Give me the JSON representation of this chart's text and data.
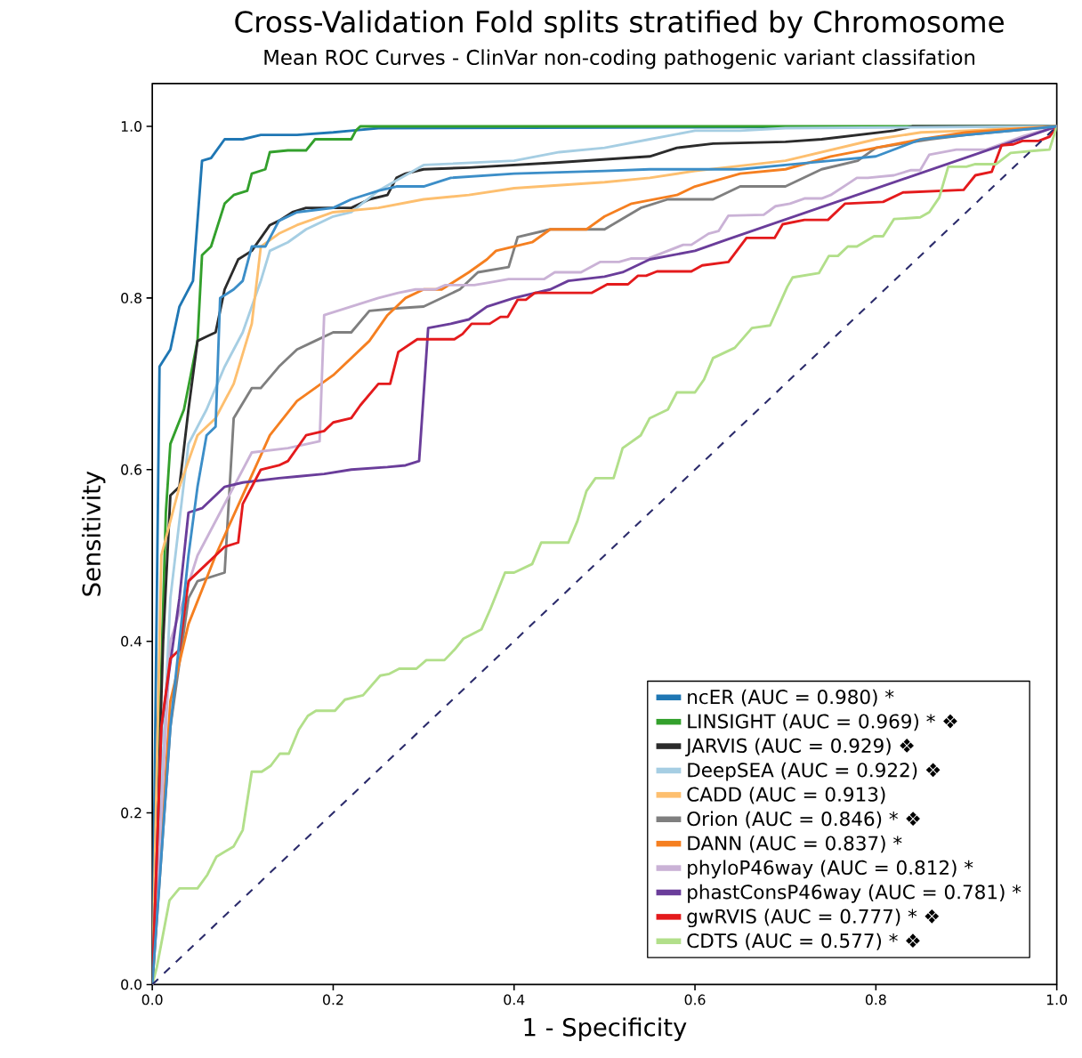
{
  "chart_data": {
    "type": "line",
    "title": "Cross-Validation Fold splits stratified by Chromosome",
    "subtitle": "Mean ROC Curves - ClinVar non-coding pathogenic variant classifation",
    "xlabel": "1 - Specificity",
    "ylabel": "Sensitivity",
    "xlim": [
      0,
      1
    ],
    "ylim": [
      0,
      1.05
    ],
    "xticks": [
      {
        "value": 0,
        "label": "0.0"
      },
      {
        "value": 0.2,
        "label": "0.2"
      },
      {
        "value": 0.4,
        "label": "0.4"
      },
      {
        "value": 0.6,
        "label": "0.6"
      },
      {
        "value": 0.8,
        "label": "0.8"
      },
      {
        "value": 1,
        "label": "1.0"
      }
    ],
    "yticks": [
      {
        "value": 0,
        "label": "0.0"
      },
      {
        "value": 0.2,
        "label": "0.2"
      },
      {
        "value": 0.4,
        "label": "0.4"
      },
      {
        "value": 0.6,
        "label": "0.6"
      },
      {
        "value": 0.8,
        "label": "0.8"
      },
      {
        "value": 1,
        "label": "1.0"
      }
    ],
    "grid": false,
    "legend": "bottom right",
    "marker": "none",
    "series": [
      {
        "name": "ncER (AUC = 0.980) *",
        "color": "#1f77b4",
        "x": [
          0,
          0.008,
          0.02,
          0.03,
          0.045,
          0.055,
          0.065,
          0.08,
          0.1,
          0.12,
          0.16,
          0.2,
          0.22,
          0.25,
          1
        ],
        "values": [
          0,
          0.72,
          0.74,
          0.79,
          0.82,
          0.96,
          0.963,
          0.985,
          0.985,
          0.99,
          0.99,
          0.993,
          0.995,
          0.998,
          1
        ]
      },
      {
        "name": "LINSIGHT (AUC = 0.969) * ❖",
        "color": "#33a02c",
        "x": [
          0,
          0.015,
          0.02,
          0.035,
          0.05,
          0.055,
          0.065,
          0.08,
          0.09,
          0.105,
          0.11,
          0.125,
          0.13,
          0.15,
          0.17,
          0.18,
          0.22,
          0.225,
          0.23,
          1
        ],
        "values": [
          0,
          0.55,
          0.63,
          0.67,
          0.75,
          0.85,
          0.86,
          0.91,
          0.92,
          0.925,
          0.945,
          0.95,
          0.97,
          0.972,
          0.972,
          0.985,
          0.985,
          0.995,
          1,
          1
        ]
      },
      {
        "name": "JARVIS (AUC = 0.929) ❖",
        "color": "#2b2b2b",
        "x": [
          0,
          0.012,
          0.02,
          0.03,
          0.04,
          0.05,
          0.06,
          0.07,
          0.08,
          0.095,
          0.11,
          0.13,
          0.14,
          0.155,
          0.17,
          0.22,
          0.24,
          0.26,
          0.27,
          0.28,
          0.3,
          0.35,
          0.45,
          0.55,
          0.58,
          0.62,
          0.7,
          0.74,
          0.82,
          0.84,
          1
        ],
        "values": [
          0,
          0.4,
          0.57,
          0.58,
          0.67,
          0.75,
          0.755,
          0.76,
          0.81,
          0.845,
          0.855,
          0.885,
          0.89,
          0.9,
          0.905,
          0.905,
          0.915,
          0.92,
          0.94,
          0.945,
          0.95,
          0.952,
          0.958,
          0.965,
          0.975,
          0.98,
          0.982,
          0.985,
          0.995,
          1,
          1
        ]
      },
      {
        "name": "DeepSEA (AUC = 0.922) ❖",
        "color": "#a6cee3",
        "x": [
          0,
          0.02,
          0.04,
          0.06,
          0.08,
          0.1,
          0.12,
          0.13,
          0.15,
          0.17,
          0.2,
          0.22,
          0.25,
          0.3,
          0.4,
          0.45,
          0.5,
          0.55,
          0.6,
          0.65,
          0.7,
          1
        ],
        "values": [
          0,
          0.45,
          0.63,
          0.67,
          0.72,
          0.76,
          0.82,
          0.855,
          0.865,
          0.88,
          0.895,
          0.9,
          0.925,
          0.955,
          0.96,
          0.97,
          0.975,
          0.985,
          0.995,
          0.995,
          0.998,
          1
        ]
      },
      {
        "name": "CADD (AUC = 0.913)",
        "color": "#fdbf6f",
        "x": [
          0,
          0.01,
          0.03,
          0.05,
          0.07,
          0.09,
          0.11,
          0.12,
          0.14,
          0.16,
          0.2,
          0.25,
          0.3,
          0.35,
          0.4,
          0.5,
          0.55,
          0.6,
          0.7,
          0.8,
          0.85,
          0.9,
          1
        ],
        "values": [
          0,
          0.5,
          0.58,
          0.64,
          0.66,
          0.7,
          0.77,
          0.86,
          0.875,
          0.885,
          0.9,
          0.905,
          0.915,
          0.92,
          0.928,
          0.935,
          0.94,
          0.948,
          0.96,
          0.985,
          0.993,
          0.995,
          1
        ]
      },
      {
        "name": "Orion (AUC = 0.846) * ❖",
        "color": "#7f7f7f",
        "x": [
          0,
          0.02,
          0.04,
          0.05,
          0.08,
          0.09,
          0.11,
          0.12,
          0.14,
          0.16,
          0.18,
          0.2,
          0.22,
          0.24,
          0.27,
          0.3,
          0.34,
          0.36,
          0.394,
          0.404,
          0.44,
          0.5,
          0.54,
          0.57,
          0.62,
          0.65,
          0.7,
          0.74,
          0.78,
          0.8,
          0.86,
          0.9,
          1
        ],
        "values": [
          0,
          0.3,
          0.45,
          0.47,
          0.48,
          0.66,
          0.695,
          0.695,
          0.72,
          0.74,
          0.75,
          0.76,
          0.76,
          0.785,
          0.788,
          0.79,
          0.81,
          0.83,
          0.836,
          0.871,
          0.88,
          0.88,
          0.905,
          0.915,
          0.915,
          0.93,
          0.93,
          0.95,
          0.96,
          0.975,
          0.985,
          0.99,
          1
        ]
      },
      {
        "name": "DANN (AUC = 0.837) *",
        "color": "#f57f20",
        "x": [
          0,
          0.02,
          0.04,
          0.07,
          0.1,
          0.13,
          0.16,
          0.2,
          0.24,
          0.26,
          0.28,
          0.3,
          0.32,
          0.35,
          0.37,
          0.38,
          0.42,
          0.44,
          0.48,
          0.5,
          0.53,
          0.58,
          0.6,
          0.65,
          0.7,
          0.75,
          0.8,
          0.85,
          0.9,
          1
        ],
        "values": [
          0,
          0.33,
          0.42,
          0.5,
          0.57,
          0.64,
          0.68,
          0.71,
          0.75,
          0.78,
          0.8,
          0.81,
          0.81,
          0.83,
          0.845,
          0.855,
          0.865,
          0.88,
          0.88,
          0.895,
          0.91,
          0.92,
          0.93,
          0.945,
          0.95,
          0.965,
          0.975,
          0.985,
          0.993,
          1
        ]
      },
      {
        "name": "phyloP46way  (AUC = 0.812) *",
        "color": "#cab2d6",
        "x": [
          0,
          0.02,
          0.05,
          0.08,
          0.11,
          0.15,
          0.185,
          0.19,
          0.25,
          0.272,
          0.291,
          0.313,
          0.324,
          0.356,
          0.372,
          0.394,
          0.433,
          0.445,
          0.474,
          0.495,
          0.516,
          0.529,
          0.548,
          0.587,
          0.596,
          0.615,
          0.626,
          0.637,
          0.676,
          0.689,
          0.705,
          0.721,
          0.74,
          0.75,
          0.769,
          0.779,
          0.791,
          0.82,
          0.839,
          0.849,
          0.859,
          0.889,
          0.922,
          0.964,
          1
        ],
        "values": [
          0,
          0.4,
          0.5,
          0.56,
          0.62,
          0.625,
          0.633,
          0.78,
          0.8,
          0.806,
          0.81,
          0.81,
          0.815,
          0.815,
          0.818,
          0.822,
          0.822,
          0.83,
          0.83,
          0.842,
          0.842,
          0.846,
          0.846,
          0.862,
          0.862,
          0.875,
          0.878,
          0.896,
          0.897,
          0.907,
          0.91,
          0.916,
          0.916,
          0.92,
          0.933,
          0.94,
          0.94,
          0.943,
          0.949,
          0.949,
          0.967,
          0.973,
          0.973,
          0.989,
          1
        ]
      },
      {
        "name": "phastConsP46way (AUC = 0.781) *",
        "color": "#6a3d9a",
        "x": [
          0,
          0.01,
          0.03,
          0.04,
          0.055,
          0.07,
          0.08,
          0.1,
          0.14,
          0.16,
          0.19,
          0.22,
          0.26,
          0.28,
          0.295,
          0.305,
          0.33,
          0.35,
          0.37,
          0.4,
          0.44,
          0.46,
          0.5,
          0.52,
          0.55,
          0.6,
          0.635,
          1
        ],
        "values": [
          0,
          0.3,
          0.45,
          0.55,
          0.555,
          0.57,
          0.58,
          0.585,
          0.59,
          0.592,
          0.595,
          0.6,
          0.603,
          0.605,
          0.61,
          0.765,
          0.77,
          0.775,
          0.79,
          0.8,
          0.81,
          0.82,
          0.825,
          0.83,
          0.845,
          0.855,
          0.868,
          1
        ]
      },
      {
        "name": "gwRVIS (AUC = 0.777) * ❖",
        "color": "#e41a1c",
        "x": [
          0,
          0.01,
          0.02,
          0.03,
          0.04,
          0.06,
          0.08,
          0.095,
          0.1,
          0.12,
          0.14,
          0.15,
          0.17,
          0.19,
          0.2,
          0.22,
          0.23,
          0.25,
          0.263,
          0.272,
          0.293,
          0.334,
          0.343,
          0.353,
          0.373,
          0.385,
          0.393,
          0.404,
          0.413,
          0.423,
          0.486,
          0.503,
          0.526,
          0.537,
          0.546,
          0.558,
          0.596,
          0.608,
          0.637,
          0.657,
          0.688,
          0.697,
          0.721,
          0.747,
          0.766,
          0.808,
          0.83,
          0.897,
          0.91,
          0.928,
          0.939,
          0.952,
          0.962,
          0.98,
          0.992,
          1
        ],
        "values": [
          0,
          0.3,
          0.38,
          0.39,
          0.47,
          0.49,
          0.51,
          0.515,
          0.56,
          0.6,
          0.605,
          0.61,
          0.64,
          0.645,
          0.655,
          0.66,
          0.675,
          0.7,
          0.7,
          0.737,
          0.752,
          0.752,
          0.758,
          0.77,
          0.77,
          0.778,
          0.778,
          0.798,
          0.798,
          0.806,
          0.806,
          0.816,
          0.816,
          0.826,
          0.826,
          0.831,
          0.831,
          0.838,
          0.842,
          0.87,
          0.87,
          0.886,
          0.891,
          0.891,
          0.91,
          0.912,
          0.923,
          0.926,
          0.943,
          0.947,
          0.978,
          0.979,
          0.983,
          0.983,
          0.988,
          1
        ]
      },
      {
        "name": "CDTS (AUC = 0.577) * ❖",
        "color": "#b2df8a",
        "x": [
          0,
          0.005,
          0.019,
          0.03,
          0.05,
          0.061,
          0.071,
          0.09,
          0.1,
          0.11,
          0.121,
          0.131,
          0.141,
          0.151,
          0.162,
          0.172,
          0.181,
          0.202,
          0.213,
          0.233,
          0.252,
          0.262,
          0.273,
          0.292,
          0.303,
          0.323,
          0.334,
          0.344,
          0.364,
          0.374,
          0.39,
          0.4,
          0.42,
          0.43,
          0.46,
          0.47,
          0.48,
          0.49,
          0.51,
          0.52,
          0.54,
          0.55,
          0.57,
          0.58,
          0.6,
          0.61,
          0.62,
          0.644,
          0.663,
          0.683,
          0.702,
          0.708,
          0.737,
          0.748,
          0.758,
          0.769,
          0.779,
          0.798,
          0.808,
          0.82,
          0.849,
          0.859,
          0.87,
          0.88,
          0.9,
          0.91,
          0.933,
          0.949,
          0.98,
          0.992,
          1
        ],
        "values": [
          0,
          0.02,
          0.098,
          0.112,
          0.112,
          0.128,
          0.149,
          0.161,
          0.18,
          0.248,
          0.248,
          0.255,
          0.269,
          0.269,
          0.297,
          0.313,
          0.319,
          0.319,
          0.332,
          0.337,
          0.36,
          0.362,
          0.368,
          0.368,
          0.378,
          0.378,
          0.39,
          0.403,
          0.414,
          0.438,
          0.48,
          0.48,
          0.49,
          0.515,
          0.515,
          0.54,
          0.575,
          0.59,
          0.59,
          0.625,
          0.64,
          0.66,
          0.67,
          0.69,
          0.69,
          0.705,
          0.73,
          0.742,
          0.765,
          0.768,
          0.813,
          0.824,
          0.829,
          0.849,
          0.849,
          0.86,
          0.86,
          0.872,
          0.872,
          0.892,
          0.894,
          0.9,
          0.917,
          0.953,
          0.953,
          0.956,
          0.956,
          0.969,
          0.972,
          0.973,
          1
        ]
      },
      {
        "color": "#3c8ec8",
        "x": [
          0,
          0.02,
          0.04,
          0.05,
          0.06,
          0.07,
          0.075,
          0.09,
          0.1,
          0.11,
          0.125,
          0.14,
          0.16,
          0.2,
          0.22,
          0.25,
          0.27,
          0.3,
          0.33,
          0.4,
          0.5,
          0.55,
          0.65,
          0.7,
          0.75,
          0.8,
          0.85,
          0.9,
          1
        ],
        "values": [
          0,
          0.3,
          0.5,
          0.58,
          0.64,
          0.65,
          0.8,
          0.81,
          0.82,
          0.86,
          0.86,
          0.89,
          0.9,
          0.905,
          0.915,
          0.925,
          0.93,
          0.93,
          0.94,
          0.945,
          0.948,
          0.95,
          0.95,
          0.955,
          0.96,
          0.965,
          0.985,
          0.99,
          1
        ]
      },
      {
        "color": "#2b2b6b",
        "line_style": "dashed",
        "x": [
          0,
          1
        ],
        "values": [
          0,
          1
        ]
      }
    ]
  }
}
